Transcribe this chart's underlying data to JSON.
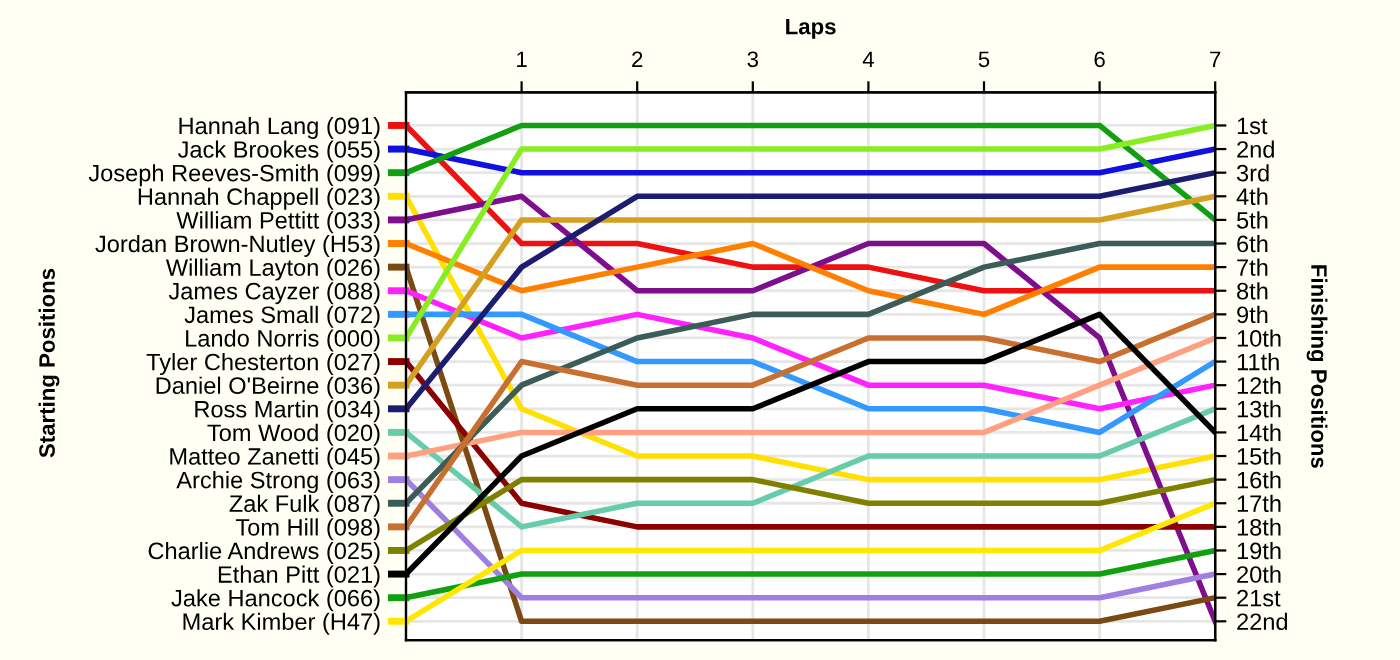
{
  "chart_data": {
    "type": "line",
    "xlabel": "Laps",
    "annotations": [
      "Starting Positions"
    ],
    "legend": "left",
    "y2label": "Finishing Positions",
    "x": [
      0,
      1,
      2,
      3,
      4,
      5,
      6,
      7
    ],
    "xlim": [
      0,
      7
    ],
    "xticks": [
      1,
      2,
      3,
      4,
      5,
      6,
      7
    ],
    "ylim": [
      22.8,
      -0.4
    ],
    "yticks": [
      {
        "value": 1,
        "label": "1st"
      },
      {
        "value": 2,
        "label": "2nd"
      },
      {
        "value": 3,
        "label": "3rd"
      },
      {
        "value": 4,
        "label": "4th"
      },
      {
        "value": 5,
        "label": "5th"
      },
      {
        "value": 6,
        "label": "6th"
      },
      {
        "value": 7,
        "label": "7th"
      },
      {
        "value": 8,
        "label": "8th"
      },
      {
        "value": 9,
        "label": "9th"
      },
      {
        "value": 10,
        "label": "10th"
      },
      {
        "value": 11,
        "label": "11th"
      },
      {
        "value": 12,
        "label": "12th"
      },
      {
        "value": 13,
        "label": "13th"
      },
      {
        "value": 14,
        "label": "14th"
      },
      {
        "value": 15,
        "label": "15th"
      },
      {
        "value": 16,
        "label": "16th"
      },
      {
        "value": 17,
        "label": "17th"
      },
      {
        "value": 18,
        "label": "18th"
      },
      {
        "value": 19,
        "label": "19th"
      },
      {
        "value": 20,
        "label": "20th"
      },
      {
        "value": 21,
        "label": "21st"
      },
      {
        "value": 22,
        "label": "22nd"
      }
    ],
    "grid": true,
    "marker": "none",
    "line_style": "solid",
    "series": [
      {
        "name": "Hannah Lang (091)",
        "color": "#ee1111",
        "values": [
          1,
          6,
          6,
          7,
          7,
          8,
          8,
          8
        ]
      },
      {
        "name": "Jack Brookes (055)",
        "color": "#1010e0",
        "values": [
          2,
          3,
          3,
          3,
          3,
          3,
          3,
          2
        ]
      },
      {
        "name": "Joseph Reeves-Smith (099)",
        "color": "#12a012",
        "values": [
          3,
          1,
          1,
          1,
          1,
          1,
          1,
          5
        ]
      },
      {
        "name": "Hannah Chappell (023)",
        "color": "#ffe000",
        "values": [
          4,
          13,
          15,
          15,
          16,
          16,
          16,
          15
        ]
      },
      {
        "name": "William Pettitt (033)",
        "color": "#7d0f8c",
        "values": [
          5,
          4,
          8,
          8,
          6,
          6,
          10,
          22
        ]
      },
      {
        "name": "Jordan Brown-Nutley (H53)",
        "color": "#ff8000",
        "values": [
          6,
          8,
          7,
          6,
          8,
          9,
          7,
          7
        ]
      },
      {
        "name": "William Layton (026)",
        "color": "#7b4a12",
        "values": [
          7,
          22,
          22,
          22,
          22,
          22,
          22,
          21
        ]
      },
      {
        "name": "James Cayzer (088)",
        "color": "#ff22ff",
        "values": [
          8,
          10,
          9,
          10,
          12,
          12,
          13,
          12
        ]
      },
      {
        "name": "James Small (072)",
        "color": "#3399ff",
        "values": [
          9,
          9,
          11,
          11,
          13,
          13,
          14,
          11
        ]
      },
      {
        "name": "Lando Norris (000)",
        "color": "#88ee22",
        "values": [
          10,
          2,
          2,
          2,
          2,
          2,
          2,
          1
        ]
      },
      {
        "name": "Tyler Chesterton (027)",
        "color": "#8b0000",
        "values": [
          11,
          17,
          18,
          18,
          18,
          18,
          18,
          18
        ]
      },
      {
        "name": "Daniel O'Beirne (036)",
        "color": "#d4a020",
        "values": [
          12,
          5,
          5,
          5,
          5,
          5,
          5,
          4
        ]
      },
      {
        "name": "Ross Martin (034)",
        "color": "#1c1c70",
        "values": [
          13,
          7,
          4,
          4,
          4,
          4,
          4,
          3
        ]
      },
      {
        "name": "Tom Wood (020)",
        "color": "#66ccaa",
        "values": [
          14,
          18,
          17,
          17,
          15,
          15,
          15,
          13
        ]
      },
      {
        "name": "Matteo Zanetti (045)",
        "color": "#ffa080",
        "values": [
          15,
          14,
          14,
          14,
          14,
          14,
          12,
          10
        ]
      },
      {
        "name": "Archie Strong (063)",
        "color": "#9f80e0",
        "values": [
          16,
          21,
          21,
          21,
          21,
          21,
          21,
          20
        ]
      },
      {
        "name": "Zak Fulk (087)",
        "color": "#3c5c58",
        "values": [
          17,
          12,
          10,
          9,
          9,
          7,
          6,
          6
        ]
      },
      {
        "name": "Tom Hill (098)",
        "color": "#c87030",
        "values": [
          18,
          11,
          12,
          12,
          10,
          10,
          11,
          9
        ]
      },
      {
        "name": "Charlie Andrews (025)",
        "color": "#808000",
        "values": [
          19,
          16,
          16,
          16,
          17,
          17,
          17,
          16
        ]
      },
      {
        "name": "Ethan Pitt (021)",
        "color": "#000000",
        "values": [
          20,
          15,
          13,
          13,
          11,
          11,
          9,
          14
        ]
      },
      {
        "name": "Jake Hancock (066)",
        "color": "#10a010",
        "values": [
          21,
          20,
          20,
          20,
          20,
          20,
          20,
          19
        ]
      },
      {
        "name": "Mark Kimber (H47)",
        "color": "#ffe800",
        "values": [
          22,
          19,
          19,
          19,
          19,
          19,
          19,
          17
        ]
      }
    ]
  }
}
